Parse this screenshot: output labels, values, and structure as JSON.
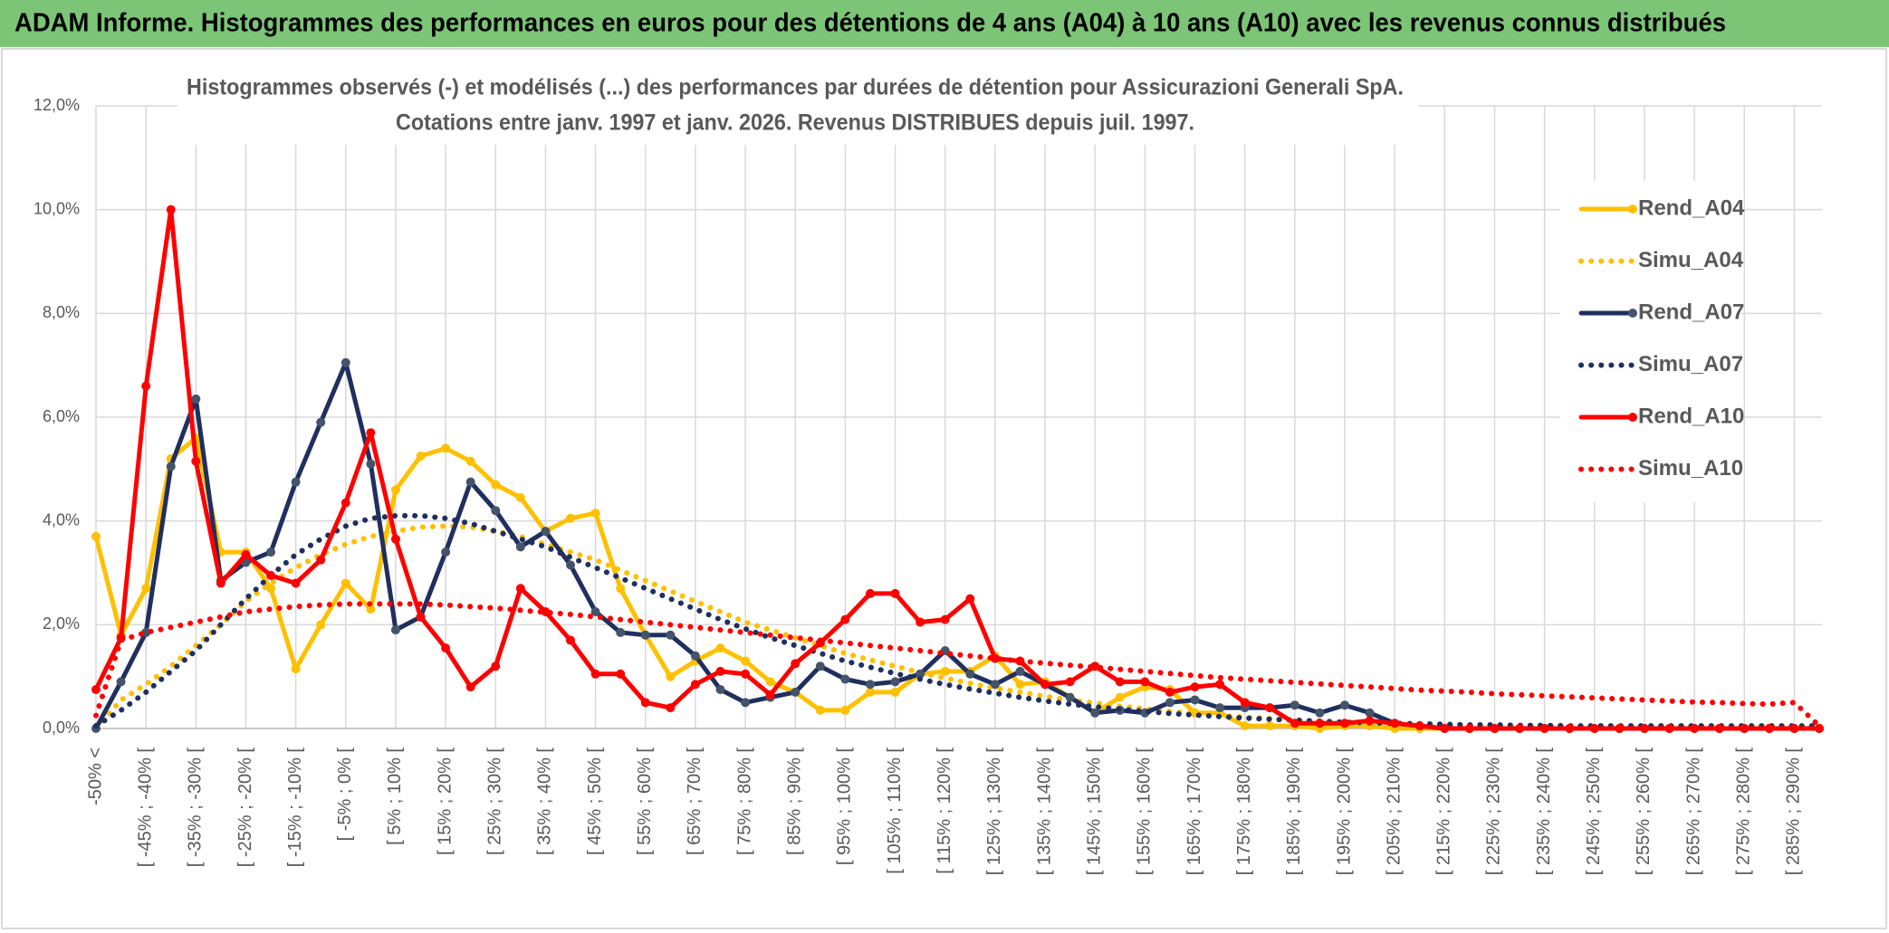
{
  "header": {
    "title": "ADAM Informe. Histogrammes des performances en euros pour des détentions de 4 ans (A04) à 10 ans (A10) avec les revenus connus distribués"
  },
  "chart_data": {
    "type": "line",
    "title": "Histogrammes observés (-) et modélisés (...) des performances par durées de détention pour Assicurazioni Generali SpA.",
    "subtitle": "Cotations entre janv. 1997 et janv. 2026. Revenus DISTRIBUES depuis juil. 1997.",
    "categories": [
      "-50% <",
      null,
      "[ -45% ; -40% [",
      null,
      "[ -35% ; -30% [",
      null,
      "[ -25% ; -20% [",
      null,
      "[ -15% ; -10% [",
      null,
      "[ -5% ; 0% [",
      null,
      "[ 5% ; 10% [",
      null,
      "[ 15% ; 20% [",
      null,
      "[ 25% ; 30% [",
      null,
      "[ 35% ; 40% [",
      null,
      "[ 45% ; 50% [",
      null,
      "[ 55% ; 60% [",
      null,
      "[ 65% ; 70% [",
      null,
      "[ 75% ; 80% [",
      null,
      "[ 85% ; 90% [",
      null,
      "[ 95% ; 100% [",
      null,
      "[ 105% ; 110% [",
      null,
      "[ 115% ; 120% [",
      null,
      "[ 125% ; 130% [",
      null,
      "[ 135% ; 140% [",
      null,
      "[ 145% ; 150% [",
      null,
      "[ 155% ; 160% [",
      null,
      "[ 165% ; 170% [",
      null,
      "[ 175% ; 180% [",
      null,
      "[ 185% ; 190% [",
      null,
      "[ 195% ; 200% [",
      null,
      "[ 205% ; 210% [",
      null,
      "[ 215% ; 220% [",
      null,
      "[ 225% ; 230% [",
      null,
      "[ 235% ; 240% [",
      null,
      "[ 245% ; 250% [",
      null,
      "[ 255% ; 260% [",
      null,
      "[ 265% ; 270% [",
      null,
      "[ 275% ; 280% [",
      null,
      "[ 285% ; 290% [",
      null
    ],
    "ylim": [
      0,
      12
    ],
    "yticks": [
      {
        "value": 0,
        "label": "0,0%"
      },
      {
        "value": 2,
        "label": "2,0%"
      },
      {
        "value": 4,
        "label": "4,0%"
      },
      {
        "value": 6,
        "label": "6,0%"
      },
      {
        "value": 8,
        "label": "8,0%"
      },
      {
        "value": 10,
        "label": "10,0%"
      },
      {
        "value": 12,
        "label": "12,0%"
      }
    ],
    "grid": true,
    "legend": "right",
    "series": [
      {
        "name": "Rend_A04",
        "color": "#ffc000",
        "line_style": "solid",
        "markers": true,
        "marker_color": "#ffc000",
        "values": [
          3.7,
          1.8,
          2.7,
          5.2,
          5.6,
          3.4,
          3.4,
          2.7,
          1.15,
          2.0,
          2.8,
          2.3,
          4.6,
          5.25,
          5.4,
          5.15,
          4.7,
          4.45,
          3.8,
          4.05,
          4.15,
          2.7,
          1.8,
          1.0,
          1.3,
          1.55,
          1.3,
          0.9,
          0.7,
          0.35,
          0.35,
          0.7,
          0.7,
          1.05,
          1.1,
          1.1,
          1.4,
          0.85,
          0.9,
          0.6,
          0.3,
          0.6,
          0.8,
          0.75,
          0.3,
          0.3,
          0.05,
          0.05,
          0.05,
          0,
          0.05,
          0.05,
          0,
          0,
          0,
          0,
          0,
          0,
          0,
          0,
          0,
          0,
          0,
          0,
          0,
          0,
          0,
          0,
          0,
          0
        ]
      },
      {
        "name": "Simu_A04",
        "color": "#ffc000",
        "line_style": "dotted",
        "markers": false,
        "values": [
          0,
          0.55,
          0.85,
          1.2,
          1.6,
          2.0,
          2.45,
          2.8,
          3.1,
          3.35,
          3.55,
          3.7,
          3.8,
          3.88,
          3.9,
          3.88,
          3.8,
          3.7,
          3.55,
          3.4,
          3.25,
          3.05,
          2.85,
          2.65,
          2.45,
          2.25,
          2.05,
          1.9,
          1.75,
          1.6,
          1.45,
          1.32,
          1.2,
          1.08,
          0.97,
          0.87,
          0.78,
          0.7,
          0.62,
          0.55,
          0.49,
          0.43,
          0.38,
          0.33,
          0.29,
          0.25,
          0.22,
          0.19,
          0.16,
          0.14,
          0.12,
          0.1,
          0.09,
          0.08,
          0.07,
          0.06,
          0.05,
          0.05,
          0.05,
          0.05,
          0.05,
          0.05,
          0.05,
          0.05,
          0.05,
          0.05,
          0.05,
          0.05,
          0.05,
          0.05
        ]
      },
      {
        "name": "Rend_A07",
        "color": "#1f2f5f",
        "line_style": "solid",
        "markers": true,
        "marker_color": "#44546a",
        "values": [
          0,
          0.9,
          1.85,
          5.05,
          6.35,
          2.85,
          3.2,
          3.4,
          4.75,
          5.9,
          7.05,
          5.1,
          1.9,
          2.15,
          3.4,
          4.75,
          4.2,
          3.5,
          3.8,
          3.15,
          2.25,
          1.85,
          1.8,
          1.8,
          1.4,
          0.75,
          0.5,
          0.6,
          0.7,
          1.2,
          0.95,
          0.85,
          0.9,
          1.05,
          1.5,
          1.05,
          0.85,
          1.1,
          0.85,
          0.6,
          0.3,
          0.35,
          0.3,
          0.5,
          0.55,
          0.4,
          0.4,
          0.4,
          0.45,
          0.3,
          0.45,
          0.3,
          0.1,
          0.05,
          0,
          0,
          0,
          0,
          0,
          0,
          0,
          0,
          0,
          0,
          0,
          0,
          0,
          0,
          0,
          0
        ]
      },
      {
        "name": "Simu_A07",
        "color": "#1f2f5f",
        "line_style": "dotted",
        "markers": false,
        "values": [
          0.05,
          0.35,
          0.7,
          1.1,
          1.5,
          2.0,
          2.5,
          2.95,
          3.35,
          3.65,
          3.9,
          4.05,
          4.1,
          4.1,
          4.05,
          3.95,
          3.8,
          3.65,
          3.5,
          3.3,
          3.1,
          2.9,
          2.7,
          2.5,
          2.3,
          2.1,
          1.92,
          1.75,
          1.6,
          1.45,
          1.3,
          1.18,
          1.06,
          0.95,
          0.85,
          0.76,
          0.68,
          0.6,
          0.53,
          0.47,
          0.42,
          0.37,
          0.33,
          0.29,
          0.26,
          0.23,
          0.2,
          0.18,
          0.16,
          0.14,
          0.12,
          0.11,
          0.1,
          0.09,
          0.08,
          0.07,
          0.07,
          0.06,
          0.06,
          0.05,
          0.05,
          0.05,
          0.05,
          0.05,
          0.05,
          0.05,
          0.05,
          0.05,
          0.05,
          0.05
        ]
      },
      {
        "name": "Rend_A10",
        "color": "#ff0000",
        "line_style": "solid",
        "markers": true,
        "marker_color": "#ff0000",
        "values": [
          0.75,
          1.75,
          6.6,
          10.0,
          5.15,
          2.8,
          3.35,
          2.95,
          2.8,
          3.25,
          4.35,
          5.7,
          3.65,
          2.15,
          1.55,
          0.8,
          1.2,
          2.7,
          2.25,
          1.7,
          1.05,
          1.05,
          0.5,
          0.4,
          0.85,
          1.1,
          1.05,
          0.65,
          1.25,
          1.65,
          2.1,
          2.6,
          2.6,
          2.05,
          2.1,
          2.5,
          1.35,
          1.3,
          0.85,
          0.9,
          1.2,
          0.9,
          0.9,
          0.7,
          0.8,
          0.85,
          0.5,
          0.4,
          0.1,
          0.1,
          0.1,
          0.15,
          0.1,
          0.05,
          0,
          0,
          0,
          0,
          0,
          0,
          0,
          0,
          0,
          0,
          0,
          0,
          0,
          0,
          0,
          0
        ]
      },
      {
        "name": "Simu_A10",
        "color": "#ff0000",
        "line_style": "dotted",
        "markers": false,
        "values": [
          0.25,
          1.7,
          1.85,
          1.95,
          2.05,
          2.15,
          2.25,
          2.3,
          2.35,
          2.38,
          2.4,
          2.4,
          2.4,
          2.4,
          2.38,
          2.35,
          2.32,
          2.28,
          2.24,
          2.2,
          2.15,
          2.1,
          2.05,
          2.0,
          1.95,
          1.9,
          1.85,
          1.8,
          1.75,
          1.7,
          1.65,
          1.6,
          1.55,
          1.5,
          1.45,
          1.4,
          1.35,
          1.3,
          1.26,
          1.22,
          1.18,
          1.14,
          1.1,
          1.06,
          1.02,
          0.98,
          0.95,
          0.92,
          0.89,
          0.86,
          0.83,
          0.8,
          0.77,
          0.74,
          0.72,
          0.7,
          0.67,
          0.65,
          0.63,
          0.61,
          0.59,
          0.57,
          0.55,
          0.53,
          0.51,
          0.5,
          0.48,
          0.47,
          0.5,
          0.05
        ]
      }
    ]
  }
}
